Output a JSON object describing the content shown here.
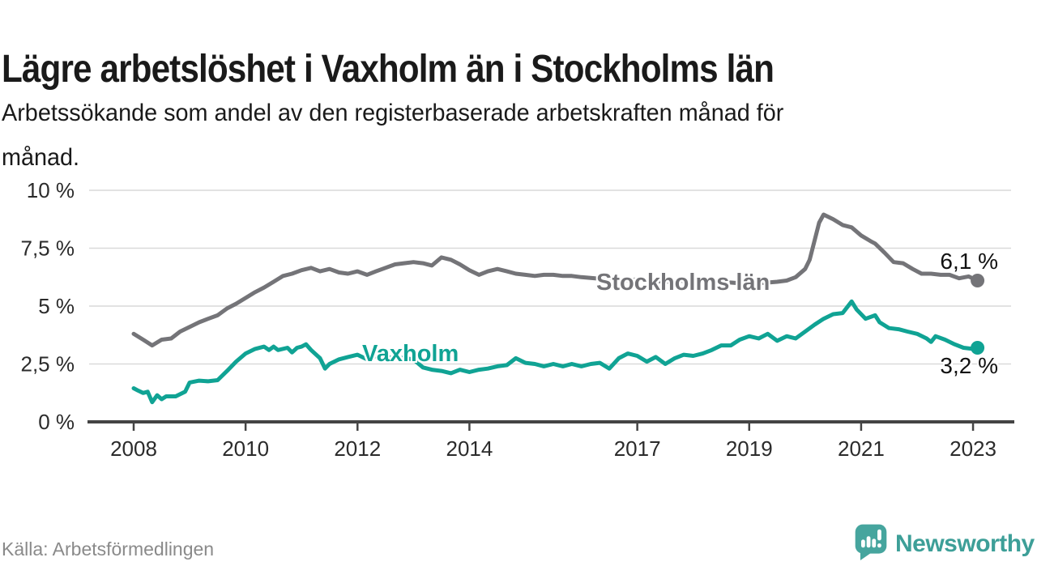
{
  "header": {
    "title": "Lägre arbetslöshet i Vaxholm än i Stockholms län",
    "subtitle_line1": "Arbetssökande som andel av den registerbaserade arbetskraften månad för",
    "subtitle_line2": "månad."
  },
  "footer": {
    "source": "Källa: Arbetsförmedlingen",
    "brand_name": "Newsworthy"
  },
  "colors": {
    "stockholm_line": "#747478",
    "vaxholm_line": "#10a394",
    "grid": "#d9d9d9",
    "axis": "#444444",
    "tick_text": "#2b2b2b",
    "brand_teal": "#3d9f98",
    "brand_icon_teal": "#46a59e"
  },
  "chart_data": {
    "type": "line",
    "title": "Lägre arbetslöshet i Vaxholm än i Stockholms län",
    "subtitle": "Arbetssökande som andel av den registerbaserade arbetskraften månad för månad.",
    "source": "Källa: Arbetsförmedlingen",
    "unit": "%",
    "grid": true,
    "legend_position": "inline-labels",
    "xlim": [
      2007.9,
      2023.6
    ],
    "ylim": [
      0,
      10
    ],
    "y_ticks": [
      {
        "label": "0 %",
        "value": 0
      },
      {
        "label": "2,5 %",
        "value": 2.5
      },
      {
        "label": "5 %",
        "value": 5
      },
      {
        "label": "7,5 %",
        "value": 7.5
      },
      {
        "label": "10 %",
        "value": 10
      }
    ],
    "x_ticks": [
      {
        "label": "2008",
        "value": 2008
      },
      {
        "label": "2010",
        "value": 2010
      },
      {
        "label": "2012",
        "value": 2012
      },
      {
        "label": "2014",
        "value": 2014
      },
      {
        "label": "2017",
        "value": 2017
      },
      {
        "label": "2019",
        "value": 2019
      },
      {
        "label": "2021",
        "value": 2021
      },
      {
        "label": "2023",
        "value": 2023
      }
    ],
    "series": [
      {
        "name": "Stockholms län",
        "color": "#747478",
        "end_label": "6,1 %",
        "end_value": 6.1,
        "points": [
          [
            2008.0,
            3.8
          ],
          [
            2008.17,
            3.55
          ],
          [
            2008.33,
            3.3
          ],
          [
            2008.5,
            3.55
          ],
          [
            2008.67,
            3.6
          ],
          [
            2008.83,
            3.9
          ],
          [
            2009.0,
            4.1
          ],
          [
            2009.17,
            4.3
          ],
          [
            2009.33,
            4.45
          ],
          [
            2009.5,
            4.6
          ],
          [
            2009.67,
            4.9
          ],
          [
            2009.83,
            5.1
          ],
          [
            2010.0,
            5.35
          ],
          [
            2010.17,
            5.6
          ],
          [
            2010.33,
            5.8
          ],
          [
            2010.5,
            6.05
          ],
          [
            2010.67,
            6.3
          ],
          [
            2010.83,
            6.4
          ],
          [
            2011.0,
            6.55
          ],
          [
            2011.17,
            6.65
          ],
          [
            2011.33,
            6.5
          ],
          [
            2011.5,
            6.6
          ],
          [
            2011.67,
            6.45
          ],
          [
            2011.83,
            6.4
          ],
          [
            2012.0,
            6.5
          ],
          [
            2012.17,
            6.35
          ],
          [
            2012.33,
            6.5
          ],
          [
            2012.5,
            6.65
          ],
          [
            2012.67,
            6.8
          ],
          [
            2012.83,
            6.85
          ],
          [
            2013.0,
            6.9
          ],
          [
            2013.17,
            6.85
          ],
          [
            2013.33,
            6.75
          ],
          [
            2013.5,
            7.1
          ],
          [
            2013.67,
            7.0
          ],
          [
            2013.83,
            6.8
          ],
          [
            2014.0,
            6.55
          ],
          [
            2014.17,
            6.35
          ],
          [
            2014.33,
            6.5
          ],
          [
            2014.5,
            6.6
          ],
          [
            2014.67,
            6.5
          ],
          [
            2014.83,
            6.4
          ],
          [
            2015.0,
            6.35
          ],
          [
            2015.17,
            6.3
          ],
          [
            2015.33,
            6.35
          ],
          [
            2015.5,
            6.35
          ],
          [
            2015.67,
            6.3
          ],
          [
            2015.83,
            6.3
          ],
          [
            2016.0,
            6.25
          ],
          [
            2016.25,
            6.2
          ],
          [
            2016.5,
            6.15
          ],
          [
            2016.75,
            6.1
          ],
          [
            2017.0,
            6.15
          ],
          [
            2017.25,
            6.1
          ],
          [
            2017.5,
            6.05
          ],
          [
            2017.75,
            6.1
          ],
          [
            2018.0,
            6.05
          ],
          [
            2018.25,
            6.1
          ],
          [
            2018.5,
            6.05
          ],
          [
            2018.75,
            6.0
          ],
          [
            2019.0,
            6.05
          ],
          [
            2019.25,
            6.0
          ],
          [
            2019.5,
            6.05
          ],
          [
            2019.67,
            6.1
          ],
          [
            2019.83,
            6.25
          ],
          [
            2020.0,
            6.6
          ],
          [
            2020.08,
            7.0
          ],
          [
            2020.25,
            8.6
          ],
          [
            2020.33,
            8.95
          ],
          [
            2020.5,
            8.75
          ],
          [
            2020.67,
            8.5
          ],
          [
            2020.83,
            8.4
          ],
          [
            2021.0,
            8.05
          ],
          [
            2021.17,
            7.8
          ],
          [
            2021.25,
            7.7
          ],
          [
            2021.42,
            7.3
          ],
          [
            2021.58,
            6.9
          ],
          [
            2021.75,
            6.85
          ],
          [
            2021.92,
            6.6
          ],
          [
            2022.08,
            6.4
          ],
          [
            2022.25,
            6.4
          ],
          [
            2022.42,
            6.35
          ],
          [
            2022.58,
            6.35
          ],
          [
            2022.75,
            6.2
          ],
          [
            2022.92,
            6.28
          ],
          [
            2023.08,
            6.1
          ]
        ]
      },
      {
        "name": "Vaxholm",
        "color": "#10a394",
        "end_label": "3,2 %",
        "end_value": 3.2,
        "points": [
          [
            2008.0,
            1.45
          ],
          [
            2008.08,
            1.35
          ],
          [
            2008.17,
            1.25
          ],
          [
            2008.25,
            1.3
          ],
          [
            2008.33,
            0.85
          ],
          [
            2008.42,
            1.15
          ],
          [
            2008.5,
            0.98
          ],
          [
            2008.58,
            1.1
          ],
          [
            2008.75,
            1.1
          ],
          [
            2008.92,
            1.3
          ],
          [
            2009.0,
            1.7
          ],
          [
            2009.17,
            1.78
          ],
          [
            2009.33,
            1.75
          ],
          [
            2009.5,
            1.8
          ],
          [
            2009.67,
            2.2
          ],
          [
            2009.83,
            2.6
          ],
          [
            2010.0,
            2.95
          ],
          [
            2010.17,
            3.15
          ],
          [
            2010.33,
            3.25
          ],
          [
            2010.42,
            3.1
          ],
          [
            2010.5,
            3.25
          ],
          [
            2010.58,
            3.1
          ],
          [
            2010.75,
            3.2
          ],
          [
            2010.83,
            3.0
          ],
          [
            2010.92,
            3.2
          ],
          [
            2011.0,
            3.25
          ],
          [
            2011.08,
            3.35
          ],
          [
            2011.17,
            3.1
          ],
          [
            2011.33,
            2.75
          ],
          [
            2011.42,
            2.3
          ],
          [
            2011.5,
            2.5
          ],
          [
            2011.67,
            2.7
          ],
          [
            2011.83,
            2.8
          ],
          [
            2012.0,
            2.9
          ],
          [
            2012.17,
            2.7
          ],
          [
            2012.33,
            2.85
          ],
          [
            2012.5,
            2.75
          ],
          [
            2012.67,
            2.8
          ],
          [
            2012.83,
            2.75
          ],
          [
            2013.0,
            2.7
          ],
          [
            2013.17,
            2.35
          ],
          [
            2013.33,
            2.25
          ],
          [
            2013.5,
            2.2
          ],
          [
            2013.67,
            2.1
          ],
          [
            2013.83,
            2.25
          ],
          [
            2014.0,
            2.15
          ],
          [
            2014.17,
            2.25
          ],
          [
            2014.33,
            2.3
          ],
          [
            2014.5,
            2.4
          ],
          [
            2014.67,
            2.45
          ],
          [
            2014.83,
            2.75
          ],
          [
            2015.0,
            2.55
          ],
          [
            2015.17,
            2.5
          ],
          [
            2015.33,
            2.4
          ],
          [
            2015.5,
            2.5
          ],
          [
            2015.67,
            2.4
          ],
          [
            2015.83,
            2.5
          ],
          [
            2016.0,
            2.4
          ],
          [
            2016.17,
            2.5
          ],
          [
            2016.33,
            2.55
          ],
          [
            2016.5,
            2.3
          ],
          [
            2016.67,
            2.75
          ],
          [
            2016.83,
            2.95
          ],
          [
            2017.0,
            2.85
          ],
          [
            2017.17,
            2.6
          ],
          [
            2017.33,
            2.8
          ],
          [
            2017.5,
            2.5
          ],
          [
            2017.67,
            2.75
          ],
          [
            2017.83,
            2.9
          ],
          [
            2018.0,
            2.85
          ],
          [
            2018.17,
            2.95
          ],
          [
            2018.33,
            3.1
          ],
          [
            2018.5,
            3.3
          ],
          [
            2018.67,
            3.3
          ],
          [
            2018.83,
            3.55
          ],
          [
            2019.0,
            3.7
          ],
          [
            2019.17,
            3.6
          ],
          [
            2019.33,
            3.8
          ],
          [
            2019.5,
            3.5
          ],
          [
            2019.67,
            3.7
          ],
          [
            2019.83,
            3.6
          ],
          [
            2020.0,
            3.9
          ],
          [
            2020.17,
            4.2
          ],
          [
            2020.33,
            4.45
          ],
          [
            2020.5,
            4.65
          ],
          [
            2020.67,
            4.7
          ],
          [
            2020.83,
            5.2
          ],
          [
            2020.92,
            4.85
          ],
          [
            2021.08,
            4.45
          ],
          [
            2021.25,
            4.6
          ],
          [
            2021.33,
            4.3
          ],
          [
            2021.5,
            4.05
          ],
          [
            2021.67,
            4.0
          ],
          [
            2021.83,
            3.9
          ],
          [
            2022.0,
            3.8
          ],
          [
            2022.17,
            3.6
          ],
          [
            2022.25,
            3.45
          ],
          [
            2022.33,
            3.7
          ],
          [
            2022.5,
            3.55
          ],
          [
            2022.67,
            3.35
          ],
          [
            2022.83,
            3.2
          ],
          [
            2023.0,
            3.15
          ],
          [
            2023.08,
            3.2
          ]
        ]
      }
    ]
  }
}
